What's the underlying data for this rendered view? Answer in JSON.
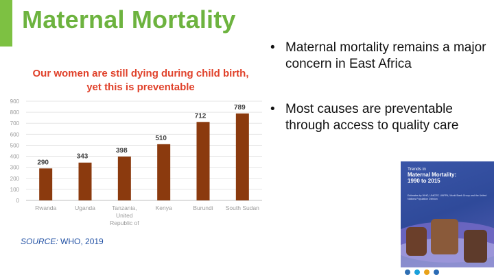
{
  "slide": {
    "title": "Maternal Mortality",
    "source_label": "SOURCE:",
    "source_org": "WHO, 2019"
  },
  "colors": {
    "accent": "#7dc142",
    "title": "#6db33f",
    "chart_title": "#e0412a",
    "bar": "#8b3a0e",
    "source": "#1f4fa3"
  },
  "bullets": [
    "Maternal mortality remains a major concern in East Africa",
    "Most causes are preventable through access to quality care"
  ],
  "report": {
    "title_line1": "Trends in",
    "title_line2": "Maternal Mortality:",
    "title_line3": "1990 to 2015",
    "subtitle": "Estimates by WHO, UNICEF, UNFPA, World Bank Group and the United Nations Population Division"
  },
  "chart_data": {
    "type": "bar",
    "title_line1": "Our women are still dying during child birth,",
    "title_line2": "yet this is preventable",
    "categories": [
      "Rwanda",
      "Uganda",
      "Tanzania, United Republic of",
      "Kenya",
      "Burundi",
      "South Sudan"
    ],
    "values": [
      290,
      343,
      398,
      510,
      712,
      789
    ],
    "ylim": [
      0,
      900
    ],
    "yticks": [
      0,
      100,
      200,
      300,
      400,
      500,
      600,
      700,
      800,
      900
    ],
    "grid": true,
    "legend": "none"
  }
}
